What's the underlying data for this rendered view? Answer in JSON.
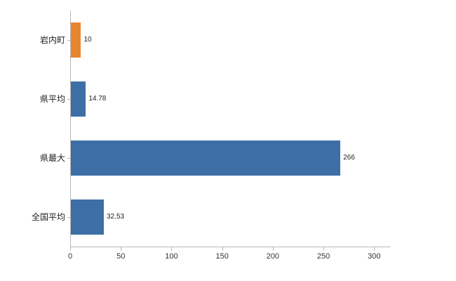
{
  "chart_data": {
    "type": "bar",
    "orientation": "horizontal",
    "title": "",
    "xlabel": "",
    "ylabel": "",
    "categories": [
      "岩内町",
      "県平均",
      "県最大",
      "全国平均"
    ],
    "values": [
      10,
      14.78,
      266,
      32.53
    ],
    "value_labels": [
      "10",
      "14.78",
      "266",
      "32.53"
    ],
    "bar_colors": [
      "#e8862f",
      "#3d6fa6",
      "#3d6fa6",
      "#3d6fa6"
    ],
    "x_ticks": [
      0,
      50,
      100,
      150,
      200,
      250,
      300
    ],
    "xlim": [
      0,
      315
    ],
    "grid": false,
    "legend": "none"
  },
  "colors": {
    "highlight_bar": "#e8862f",
    "primary_bar": "#3d6fa6",
    "axis_line": "#b8b8b8",
    "tick_text": "#333333",
    "label_text": "#222222",
    "background": "#ffffff"
  }
}
